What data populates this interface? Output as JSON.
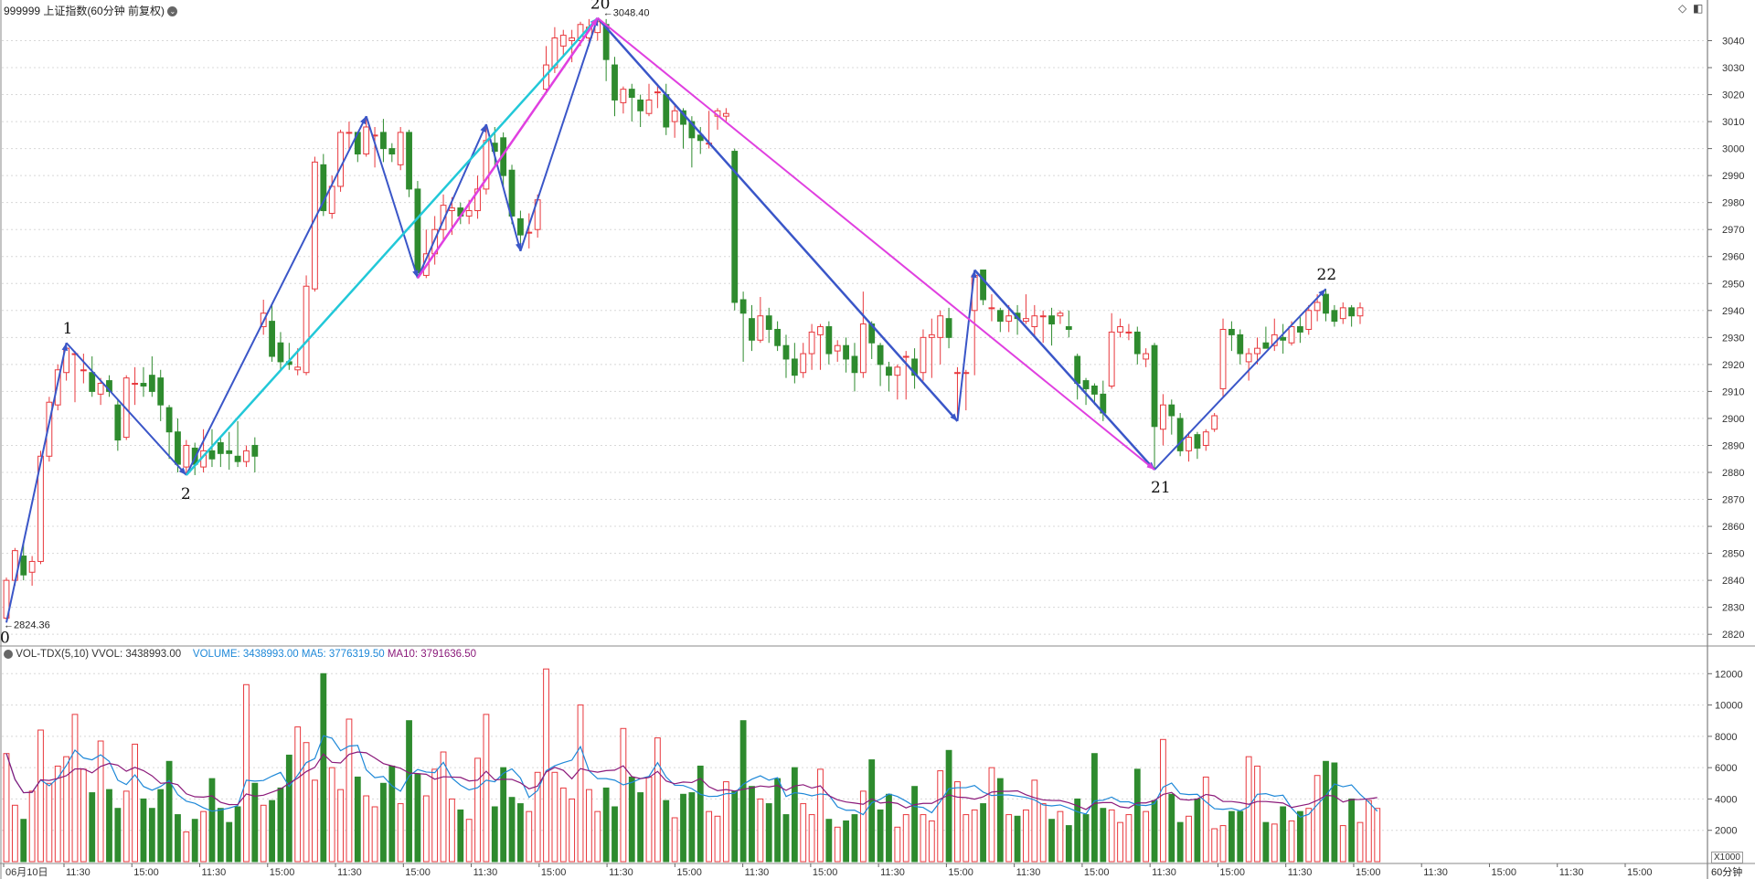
{
  "header": {
    "title": "999999 上证指数(60分钟 前复权)"
  },
  "volume_header": {
    "label": "VOL-TDX(5,10)",
    "vvol": "VVOL: 3438993.00",
    "volume": "VOLUME: 3438993.00",
    "ma5": "MA5: 3776319.50",
    "ma10": "MA10: 3791636.50"
  },
  "volume_unit": "X1000",
  "period_label": "60分钟",
  "colors": {
    "up": "#e8383d",
    "down": "#2e8b2e",
    "blue_line": "#3a56c8",
    "cyan_line": "#22c8d8",
    "magenta_line": "#e040e0",
    "ma5": "#1e88d8",
    "ma10": "#8b1a7a",
    "grid": "#d8d8d8"
  },
  "chart_data": [
    {
      "type": "candlestick",
      "title": "999999 上证指数(60分钟 前复权)",
      "y_ticks": [
        2820,
        2830,
        2840,
        2850,
        2860,
        2870,
        2880,
        2890,
        2900,
        2910,
        2920,
        2930,
        2940,
        2950,
        2960,
        2970,
        2980,
        2990,
        3000,
        3010,
        3020,
        3030,
        3040
      ],
      "ylim": [
        2816,
        3051
      ],
      "x_tick_labels": [
        "06月10日",
        "11:30",
        "15:00",
        "11:30",
        "15:00",
        "11:30",
        "15:00",
        "11:30",
        "15:00",
        "11:30",
        "15:00",
        "11:30",
        "15:00",
        "11:30",
        "15:00",
        "11:30",
        "15:00",
        "11:30",
        "15:00",
        "11:30",
        "15:00",
        "11:30",
        "15:00",
        "11:30",
        "15:00"
      ],
      "annotations": {
        "low": "2824.36",
        "high": "3048.40"
      },
      "wave_labels": [
        "0",
        "1",
        "2",
        "20",
        "21",
        "22"
      ],
      "candles": [
        [
          2826,
          2840,
          2824.36,
          2841
        ],
        [
          2840,
          2851,
          2838,
          2852
        ],
        [
          2849,
          2842,
          2840,
          2854
        ],
        [
          2843,
          2847,
          2838,
          2849
        ],
        [
          2847,
          2886,
          2846,
          2888
        ],
        [
          2886,
          2906,
          2884,
          2908
        ],
        [
          2905,
          2918,
          2903,
          2920
        ],
        [
          2917,
          2926,
          2914,
          2928
        ],
        [
          2924,
          2924,
          2906,
          2925
        ],
        [
          2918,
          2918,
          2913,
          2924
        ],
        [
          2917,
          2910,
          2908,
          2923
        ],
        [
          2909,
          2913,
          2905,
          2915
        ],
        [
          2914,
          2910,
          2908,
          2916
        ],
        [
          2905,
          2892,
          2888,
          2907
        ],
        [
          2893,
          2915,
          2892,
          2916
        ],
        [
          2913,
          2913,
          2905,
          2919
        ],
        [
          2913,
          2912,
          2908,
          2919
        ],
        [
          2916,
          2910,
          2908,
          2923
        ],
        [
          2915,
          2905,
          2899,
          2918
        ],
        [
          2904,
          2895,
          2885,
          2905
        ],
        [
          2895,
          2883,
          2880,
          2900
        ],
        [
          2882,
          2890,
          2879,
          2892
        ],
        [
          2889,
          2883,
          2879,
          2891
        ],
        [
          2882,
          2888,
          2880,
          2896
        ],
        [
          2888,
          2885,
          2882,
          2896
        ],
        [
          2891,
          2887,
          2882,
          2893
        ],
        [
          2888,
          2887,
          2881,
          2895
        ],
        [
          2886,
          2884,
          2882,
          2899
        ],
        [
          2884,
          2888,
          2882,
          2890
        ],
        [
          2890,
          2886,
          2880,
          2893
        ],
        [
          2934,
          2939,
          2931,
          2944
        ],
        [
          2936,
          2923,
          2921,
          2942
        ],
        [
          2928,
          2921,
          2918,
          2932
        ],
        [
          2921,
          2920,
          2918,
          2928
        ],
        [
          2918,
          2919,
          2916,
          2926
        ],
        [
          2917,
          2949,
          2916,
          2953
        ],
        [
          2948,
          2995,
          2947,
          2997
        ],
        [
          2994,
          2977,
          2975,
          2998
        ],
        [
          2976,
          2986,
          2974,
          2990
        ],
        [
          2986,
          3006,
          2984,
          3007
        ],
        [
          3006,
          3006,
          2999,
          3010
        ],
        [
          3006,
          2998,
          2995,
          3006
        ],
        [
          2998,
          3008,
          2997,
          3012
        ],
        [
          3005,
          3005,
          2993,
          3008
        ],
        [
          3006,
          3000,
          2995,
          3011
        ],
        [
          3000,
          2998,
          2995,
          3002
        ],
        [
          2994,
          3006,
          2992,
          3008
        ],
        [
          3006,
          2985,
          2982,
          3007
        ],
        [
          2985,
          2954,
          2952,
          2988
        ],
        [
          2953,
          2961,
          2952,
          2970
        ],
        [
          2961,
          2970,
          2957,
          2975
        ],
        [
          2970,
          2979,
          2966,
          2983
        ],
        [
          2977,
          2978,
          2968,
          2982
        ],
        [
          2978,
          2975,
          2972,
          2980
        ],
        [
          2975,
          2977,
          2972,
          2981
        ],
        [
          2977,
          2985,
          2974,
          2990
        ],
        [
          2985,
          3003,
          2983,
          3009
        ],
        [
          3002,
          2999,
          2993,
          3008
        ],
        [
          3004,
          2990,
          2986,
          3006
        ],
        [
          2992,
          2975,
          2972,
          2994
        ],
        [
          2974,
          2968,
          2962,
          2977
        ],
        [
          2969,
          2969,
          2963,
          2976
        ],
        [
          2970,
          2981,
          2967,
          2983
        ],
        [
          3022,
          3031,
          3021,
          3038
        ],
        [
          3030,
          3041,
          3028,
          3045
        ],
        [
          3038,
          3042,
          3034,
          3044
        ],
        [
          3040,
          3041,
          3032,
          3044
        ],
        [
          3040,
          3046,
          3038,
          3047
        ],
        [
          3041,
          3045,
          3038,
          3048
        ],
        [
          3043,
          3047,
          3040,
          3048.4
        ],
        [
          3046,
          3033,
          3025,
          3048
        ],
        [
          3031,
          3018,
          3012,
          3034
        ],
        [
          3017,
          3022,
          3013,
          3023
        ],
        [
          3022,
          3019,
          3010,
          3024
        ],
        [
          3018,
          3014,
          3008,
          3020
        ],
        [
          3013,
          3018,
          3012,
          3024
        ],
        [
          3021,
          3021,
          3015,
          3024
        ],
        [
          3020,
          3008,
          3005,
          3024
        ],
        [
          3010,
          3014,
          3004,
          3016
        ],
        [
          3014,
          3009,
          3000,
          3015
        ],
        [
          3010,
          3004,
          2993,
          3012
        ],
        [
          3005,
          3003,
          2998,
          3008
        ],
        [
          3002,
          3002,
          3000,
          3014
        ],
        [
          3012,
          3014,
          3007,
          3015
        ],
        [
          3012,
          3013,
          3010,
          3015
        ],
        [
          2999,
          2943,
          2940,
          3000
        ],
        [
          2944,
          2939,
          2921,
          2947
        ],
        [
          2937,
          2929,
          2925,
          2942
        ],
        [
          2929,
          2938,
          2928,
          2945
        ],
        [
          2938,
          2933,
          2928,
          2941
        ],
        [
          2933,
          2927,
          2925,
          2936
        ],
        [
          2927,
          2922,
          2915,
          2931
        ],
        [
          2922,
          2916,
          2913,
          2928
        ],
        [
          2917,
          2924,
          2915,
          2928
        ],
        [
          2924,
          2932,
          2918,
          2935
        ],
        [
          2931,
          2934,
          2918,
          2935
        ],
        [
          2934,
          2924,
          2920,
          2936
        ],
        [
          2925,
          2927,
          2921,
          2929
        ],
        [
          2927,
          2922,
          2917,
          2930
        ],
        [
          2923,
          2917,
          2910,
          2928
        ],
        [
          2917,
          2935,
          2915,
          2947
        ],
        [
          2935,
          2928,
          2922,
          2936
        ],
        [
          2927,
          2920,
          2912,
          2928
        ],
        [
          2919,
          2916,
          2910,
          2921
        ],
        [
          2916,
          2919,
          2907,
          2920
        ],
        [
          2923,
          2923,
          2907,
          2925
        ],
        [
          2922,
          2916,
          2911,
          2926
        ],
        [
          2917,
          2930,
          2914,
          2933
        ],
        [
          2930,
          2931,
          2915,
          2937
        ],
        [
          2930,
          2938,
          2920,
          2940
        ],
        [
          2937,
          2930,
          2926,
          2941
        ],
        [
          2917,
          2917,
          2899,
          2919
        ],
        [
          2917,
          2917,
          2903,
          2918
        ],
        [
          2940,
          2953,
          2916,
          2955
        ],
        [
          2955,
          2944,
          2942,
          2955
        ],
        [
          2941,
          2941,
          2936,
          2946
        ],
        [
          2940,
          2936,
          2932,
          2941
        ],
        [
          2936,
          2938,
          2932,
          2942
        ],
        [
          2939,
          2937,
          2931,
          2942
        ],
        [
          2936,
          2937,
          2935,
          2946
        ],
        [
          2934,
          2938,
          2930,
          2942
        ],
        [
          2938,
          2938,
          2928,
          2940
        ],
        [
          2938,
          2935,
          2927,
          2941
        ],
        [
          2938,
          2939,
          2935,
          2940
        ],
        [
          2934,
          2933,
          2930,
          2940
        ],
        [
          2923,
          2913,
          2907,
          2924
        ],
        [
          2914,
          2911,
          2905,
          2915
        ],
        [
          2912,
          2909,
          2905,
          2913
        ],
        [
          2909,
          2902,
          2899,
          2914
        ],
        [
          2912,
          2932,
          2911,
          2939
        ],
        [
          2932,
          2934,
          2930,
          2937
        ],
        [
          2932,
          2932,
          2929,
          2935
        ],
        [
          2932,
          2924,
          2920,
          2934
        ],
        [
          2922,
          2924,
          2919,
          2926
        ],
        [
          2927,
          2897,
          2881,
          2928
        ],
        [
          2896,
          2905,
          2890,
          2909
        ],
        [
          2905,
          2901,
          2894,
          2907
        ],
        [
          2900,
          2888,
          2886,
          2902
        ],
        [
          2888,
          2893,
          2884,
          2895
        ],
        [
          2894,
          2889,
          2885,
          2895
        ],
        [
          2890,
          2895,
          2888,
          2896
        ],
        [
          2896,
          2901,
          2895,
          2902
        ],
        [
          2911,
          2933,
          2908,
          2937
        ],
        [
          2933,
          2931,
          2925,
          2936
        ],
        [
          2931,
          2924,
          2920,
          2933
        ],
        [
          2921,
          2924,
          2914,
          2926
        ],
        [
          2924,
          2926,
          2920,
          2930
        ],
        [
          2928,
          2926,
          2926,
          2934
        ],
        [
          2927,
          2931,
          2925,
          2937
        ],
        [
          2930,
          2929,
          2924,
          2935
        ],
        [
          2928,
          2934,
          2927,
          2936
        ],
        [
          2934,
          2932,
          2928,
          2938
        ],
        [
          2933,
          2940,
          2931,
          2942
        ],
        [
          2940,
          2943,
          2936,
          2946
        ],
        [
          2946,
          2939,
          2936,
          2948
        ],
        [
          2940,
          2936,
          2934,
          2942
        ],
        [
          2937,
          2941,
          2935,
          2943
        ],
        [
          2941,
          2938,
          2934,
          2942
        ],
        [
          2938,
          2941,
          2935,
          2943
        ]
      ]
    },
    {
      "type": "bar",
      "title": "VOL-TDX(5,10)",
      "y_unit": "X1000",
      "y_ticks": [
        2000,
        4000,
        6000,
        8000,
        10000,
        12000
      ],
      "ylim": [
        0,
        12600
      ],
      "series": [
        {
          "name": "VOLUME",
          "values": [
            6900,
            3600,
            2700,
            4500,
            8400,
            5000,
            6100,
            6700,
            9400,
            5900,
            4400,
            7700,
            4600,
            3400,
            4500,
            7500,
            4000,
            3400,
            4600,
            6400,
            3000,
            1900,
            2700,
            3200,
            5300,
            3400,
            2500,
            3500,
            11300,
            5000,
            3600,
            3900,
            4700,
            6800,
            8600,
            7600,
            5200,
            12000,
            6000,
            4600,
            9100,
            5400,
            4200,
            3500,
            5000,
            6100,
            3700,
            9000,
            5600,
            4200,
            5900,
            7000,
            4000,
            3300,
            2700,
            6600,
            9400,
            3500,
            6000,
            4100,
            3700,
            3200,
            5700,
            12300,
            5700,
            4700,
            4000,
            10000,
            4600,
            3200,
            4700,
            3500,
            8500,
            5400,
            4400,
            5400,
            7900,
            3900,
            2800,
            4300,
            4400,
            6100,
            3200,
            2900,
            5100,
            4500,
            9000,
            4800,
            4000,
            3700,
            5300,
            3000,
            6000,
            3700,
            3000,
            5900,
            2700,
            2200,
            2600,
            3000,
            4500,
            6500,
            3300,
            4300,
            2200,
            3000,
            4800,
            3000,
            2600,
            5800,
            7100,
            5100,
            3000,
            3300,
            3700,
            6000,
            5300,
            3000,
            2900,
            3300,
            5200,
            3700,
            2700,
            3200,
            2300,
            4000,
            3000,
            6900,
            3400,
            3300,
            2500,
            3000,
            5900,
            3200,
            3900,
            7800,
            4300,
            2500,
            2900,
            4000,
            5400,
            2100,
            2300,
            3200,
            3200,
            6700,
            6100,
            2500,
            2400,
            3500,
            2600,
            3200,
            3400,
            5500,
            6400,
            6300,
            2300,
            4000,
            2500,
            3900,
            3400
          ]
        },
        {
          "name": "MA5",
          "values": []
        },
        {
          "name": "MA10",
          "values": []
        }
      ]
    }
  ]
}
